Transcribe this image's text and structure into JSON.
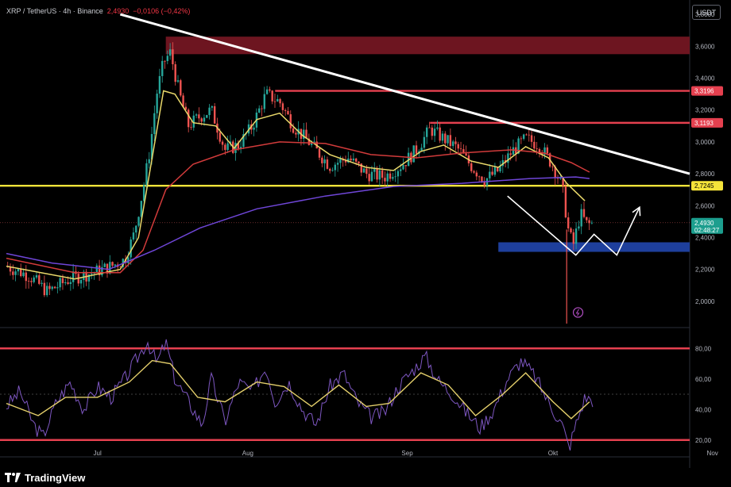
{
  "header": {
    "symbol": "XRP / TetherUS · 4h · Binance",
    "price": "2,4930",
    "change": "−0,0106 (−0,42%)"
  },
  "currency_badge": "USDT",
  "price_badges": [
    {
      "label": "3,3196",
      "value": 3.3196,
      "color": "#e5404f"
    },
    {
      "label": "3,1193",
      "value": 3.1193,
      "color": "#e5404f"
    },
    {
      "label": "2,7245",
      "value": 2.7245,
      "color": "#f5e43a"
    },
    {
      "label": "2,4930",
      "value": 2.493,
      "color": "#1c9e8e",
      "sub": "02:48:27"
    }
  ],
  "footer": {
    "brand": "TradingView"
  },
  "colors": {
    "bull": "#26a69a",
    "bear": "#ef5350",
    "resistance": "#e5404f",
    "support_line": "#f5e43a",
    "demand_zone": "#1e3f9c",
    "supply_zone": "#6d1520",
    "ema_fast": "#e9d86a",
    "ema_mid": "#d23b3b",
    "ema_slow": "#6f46d8",
    "rsi": "#7e57c2",
    "rsi_ma": "#e4cf6b"
  },
  "chart_data": [
    {
      "type": "line",
      "title": "XRP / TetherUS · 4h · Binance",
      "ylim": [
        1.85,
        3.85
      ],
      "yticks": [
        2.0,
        2.2,
        2.4,
        2.6,
        2.8,
        3.0,
        3.2,
        3.4,
        3.6,
        3.8
      ],
      "ytick_labels": [
        "2,0000",
        "2,2000",
        "2,4000",
        "2,6000",
        "2,8000",
        "3,0000",
        "3,2000",
        "3,4000",
        "3,6000",
        "3,8000"
      ],
      "x_ticks": [
        "Jul",
        "Aug",
        "Sep",
        "Okt",
        "Nov"
      ],
      "close_path": [
        {
          "t": 0,
          "y": 2.22
        },
        {
          "t": 10,
          "y": 2.16
        },
        {
          "t": 18,
          "y": 2.06
        },
        {
          "t": 28,
          "y": 2.14
        },
        {
          "t": 38,
          "y": 2.18
        },
        {
          "t": 46,
          "y": 2.22
        },
        {
          "t": 52,
          "y": 2.26
        },
        {
          "t": 56,
          "y": 2.42
        },
        {
          "t": 60,
          "y": 2.7
        },
        {
          "t": 63,
          "y": 2.95
        },
        {
          "t": 66,
          "y": 3.3
        },
        {
          "t": 69,
          "y": 3.5
        },
        {
          "t": 72,
          "y": 3.56
        },
        {
          "t": 76,
          "y": 3.3
        },
        {
          "t": 80,
          "y": 3.1
        },
        {
          "t": 84,
          "y": 3.15
        },
        {
          "t": 90,
          "y": 3.2
        },
        {
          "t": 96,
          "y": 2.95
        },
        {
          "t": 102,
          "y": 2.98
        },
        {
          "t": 108,
          "y": 3.1
        },
        {
          "t": 114,
          "y": 3.3
        },
        {
          "t": 120,
          "y": 3.25
        },
        {
          "t": 126,
          "y": 3.1
        },
        {
          "t": 134,
          "y": 2.98
        },
        {
          "t": 142,
          "y": 2.85
        },
        {
          "t": 150,
          "y": 2.9
        },
        {
          "t": 158,
          "y": 2.8
        },
        {
          "t": 166,
          "y": 2.78
        },
        {
          "t": 174,
          "y": 2.86
        },
        {
          "t": 180,
          "y": 2.95
        },
        {
          "t": 186,
          "y": 3.08
        },
        {
          "t": 192,
          "y": 3.02
        },
        {
          "t": 198,
          "y": 2.96
        },
        {
          "t": 204,
          "y": 2.85
        },
        {
          "t": 210,
          "y": 2.76
        },
        {
          "t": 216,
          "y": 2.82
        },
        {
          "t": 222,
          "y": 2.94
        },
        {
          "t": 228,
          "y": 3.02
        },
        {
          "t": 234,
          "y": 2.98
        },
        {
          "t": 240,
          "y": 2.85
        },
        {
          "t": 244,
          "y": 2.72
        },
        {
          "t": 247,
          "y": 2.42
        },
        {
          "t": 249,
          "y": 2.36
        },
        {
          "t": 252,
          "y": 2.55
        },
        {
          "t": 255,
          "y": 2.48
        },
        {
          "t": 258,
          "y": 2.49
        }
      ],
      "wick_low": {
        "t": 246,
        "y": 1.86
      },
      "series": [
        {
          "key": "ema_fast",
          "points": [
            {
              "t": 0,
              "y": 2.22
            },
            {
              "t": 30,
              "y": 2.14
            },
            {
              "t": 50,
              "y": 2.2
            },
            {
              "t": 58,
              "y": 2.4
            },
            {
              "t": 64,
              "y": 2.9
            },
            {
              "t": 69,
              "y": 3.32
            },
            {
              "t": 74,
              "y": 3.3
            },
            {
              "t": 82,
              "y": 3.12
            },
            {
              "t": 92,
              "y": 3.1
            },
            {
              "t": 100,
              "y": 2.96
            },
            {
              "t": 110,
              "y": 3.14
            },
            {
              "t": 120,
              "y": 3.18
            },
            {
              "t": 130,
              "y": 3.04
            },
            {
              "t": 142,
              "y": 2.92
            },
            {
              "t": 158,
              "y": 2.84
            },
            {
              "t": 170,
              "y": 2.82
            },
            {
              "t": 182,
              "y": 2.94
            },
            {
              "t": 192,
              "y": 2.98
            },
            {
              "t": 204,
              "y": 2.88
            },
            {
              "t": 216,
              "y": 2.84
            },
            {
              "t": 228,
              "y": 2.97
            },
            {
              "t": 238,
              "y": 2.9
            },
            {
              "t": 246,
              "y": 2.74
            },
            {
              "t": 254,
              "y": 2.63
            }
          ]
        },
        {
          "key": "ema_mid",
          "points": [
            {
              "t": 0,
              "y": 2.27
            },
            {
              "t": 30,
              "y": 2.18
            },
            {
              "t": 50,
              "y": 2.18
            },
            {
              "t": 60,
              "y": 2.32
            },
            {
              "t": 70,
              "y": 2.7
            },
            {
              "t": 82,
              "y": 2.86
            },
            {
              "t": 100,
              "y": 2.95
            },
            {
              "t": 120,
              "y": 3.0
            },
            {
              "t": 140,
              "y": 2.99
            },
            {
              "t": 160,
              "y": 2.92
            },
            {
              "t": 180,
              "y": 2.9
            },
            {
              "t": 200,
              "y": 2.93
            },
            {
              "t": 222,
              "y": 2.95
            },
            {
              "t": 236,
              "y": 2.93
            },
            {
              "t": 248,
              "y": 2.87
            },
            {
              "t": 256,
              "y": 2.81
            }
          ]
        },
        {
          "key": "ema_slow",
          "points": [
            {
              "t": 0,
              "y": 2.3
            },
            {
              "t": 20,
              "y": 2.24
            },
            {
              "t": 45,
              "y": 2.2
            },
            {
              "t": 65,
              "y": 2.32
            },
            {
              "t": 85,
              "y": 2.46
            },
            {
              "t": 110,
              "y": 2.58
            },
            {
              "t": 140,
              "y": 2.66
            },
            {
              "t": 170,
              "y": 2.72
            },
            {
              "t": 200,
              "y": 2.74
            },
            {
              "t": 230,
              "y": 2.77
            },
            {
              "t": 250,
              "y": 2.78
            },
            {
              "t": 256,
              "y": 2.77
            }
          ]
        }
      ],
      "trendline": {
        "from": {
          "t": 50,
          "y": 3.8
        },
        "to": {
          "t": 300,
          "y": 2.8
        }
      },
      "zones": [
        {
          "kind": "supply",
          "y_low": 3.55,
          "y_high": 3.66,
          "t_start": 70
        },
        {
          "kind": "demand",
          "y_low": 2.31,
          "y_high": 2.37,
          "t_start": 216
        }
      ],
      "projection": [
        {
          "t": 220,
          "y": 2.66
        },
        {
          "t": 250,
          "y": 2.29
        },
        {
          "t": 258,
          "y": 2.42
        },
        {
          "t": 268,
          "y": 2.29
        },
        {
          "t": 278,
          "y": 2.59
        }
      ]
    },
    {
      "type": "line",
      "title": "",
      "ylim": [
        10,
        90
      ],
      "yticks": [
        20,
        40,
        60,
        80
      ],
      "ytick_labels": [
        "20,00",
        "40,00",
        "60,00",
        "80,00"
      ],
      "bands": [
        20,
        80
      ],
      "midline": 50,
      "series": [
        {
          "key": "rsi",
          "points": [
            {
              "t": 0,
              "y": 42
            },
            {
              "t": 6,
              "y": 52
            },
            {
              "t": 12,
              "y": 30
            },
            {
              "t": 16,
              "y": 22
            },
            {
              "t": 22,
              "y": 45
            },
            {
              "t": 28,
              "y": 58
            },
            {
              "t": 34,
              "y": 40
            },
            {
              "t": 40,
              "y": 55
            },
            {
              "t": 46,
              "y": 48
            },
            {
              "t": 52,
              "y": 60
            },
            {
              "t": 58,
              "y": 75
            },
            {
              "t": 62,
              "y": 85
            },
            {
              "t": 66,
              "y": 70
            },
            {
              "t": 70,
              "y": 84
            },
            {
              "t": 74,
              "y": 60
            },
            {
              "t": 80,
              "y": 45
            },
            {
              "t": 86,
              "y": 30
            },
            {
              "t": 90,
              "y": 60
            },
            {
              "t": 96,
              "y": 32
            },
            {
              "t": 102,
              "y": 58
            },
            {
              "t": 108,
              "y": 52
            },
            {
              "t": 114,
              "y": 68
            },
            {
              "t": 118,
              "y": 45
            },
            {
              "t": 124,
              "y": 58
            },
            {
              "t": 130,
              "y": 40
            },
            {
              "t": 136,
              "y": 30
            },
            {
              "t": 142,
              "y": 55
            },
            {
              "t": 148,
              "y": 64
            },
            {
              "t": 154,
              "y": 45
            },
            {
              "t": 160,
              "y": 35
            },
            {
              "t": 166,
              "y": 38
            },
            {
              "t": 172,
              "y": 55
            },
            {
              "t": 178,
              "y": 65
            },
            {
              "t": 184,
              "y": 75
            },
            {
              "t": 190,
              "y": 58
            },
            {
              "t": 196,
              "y": 50
            },
            {
              "t": 202,
              "y": 38
            },
            {
              "t": 208,
              "y": 28
            },
            {
              "t": 214,
              "y": 40
            },
            {
              "t": 220,
              "y": 60
            },
            {
              "t": 226,
              "y": 72
            },
            {
              "t": 232,
              "y": 62
            },
            {
              "t": 238,
              "y": 45
            },
            {
              "t": 244,
              "y": 30
            },
            {
              "t": 247,
              "y": 15
            },
            {
              "t": 250,
              "y": 30
            },
            {
              "t": 254,
              "y": 48
            },
            {
              "t": 258,
              "y": 46
            }
          ]
        },
        {
          "key": "rsi_ma",
          "points": [
            {
              "t": 0,
              "y": 44
            },
            {
              "t": 14,
              "y": 36
            },
            {
              "t": 26,
              "y": 48
            },
            {
              "t": 40,
              "y": 48
            },
            {
              "t": 54,
              "y": 58
            },
            {
              "t": 64,
              "y": 72
            },
            {
              "t": 72,
              "y": 70
            },
            {
              "t": 84,
              "y": 48
            },
            {
              "t": 96,
              "y": 45
            },
            {
              "t": 110,
              "y": 58
            },
            {
              "t": 122,
              "y": 55
            },
            {
              "t": 134,
              "y": 42
            },
            {
              "t": 146,
              "y": 56
            },
            {
              "t": 158,
              "y": 42
            },
            {
              "t": 168,
              "y": 44
            },
            {
              "t": 182,
              "y": 64
            },
            {
              "t": 194,
              "y": 56
            },
            {
              "t": 206,
              "y": 36
            },
            {
              "t": 218,
              "y": 50
            },
            {
              "t": 228,
              "y": 64
            },
            {
              "t": 240,
              "y": 45
            },
            {
              "t": 248,
              "y": 34
            },
            {
              "t": 256,
              "y": 45
            }
          ]
        }
      ]
    }
  ]
}
